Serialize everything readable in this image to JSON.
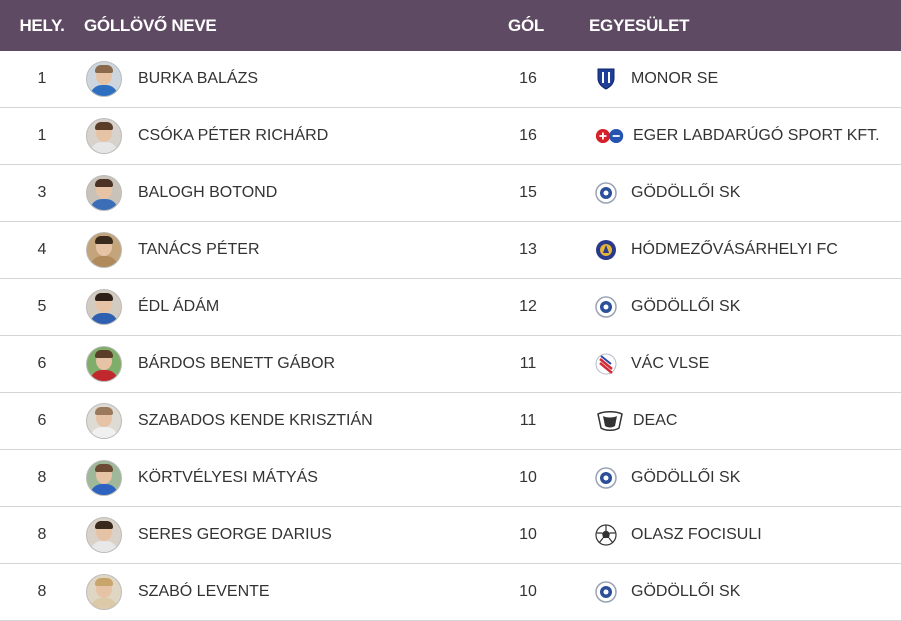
{
  "header": {
    "rank": "HELY.",
    "name": "GÓLLÖVŐ NEVE",
    "goals": "GÓL",
    "club": "EGYESÜLET"
  },
  "rows": [
    {
      "rank": "1",
      "name": "BURKA BALÁZS",
      "goals": "16",
      "club": "MONOR SE",
      "crest_icon": "monor-se-crest-icon",
      "shirt": "#2f6fc0",
      "hair": "#8a6a4a",
      "bg": "#cdd6de"
    },
    {
      "rank": "1",
      "name": "CSÓKA PÉTER RICHÁRD",
      "goals": "16",
      "club": "EGER LABDARÚGÓ SPORT KFT.",
      "crest_icon": "eger-crest-icon",
      "shirt": "#e6e6e6",
      "hair": "#5a3e2a",
      "bg": "#d8d2cc"
    },
    {
      "rank": "3",
      "name": "BALOGH BOTOND",
      "goals": "15",
      "club": "GÖDÖLLŐI SK",
      "crest_icon": "godolloi-sk-crest-icon",
      "shirt": "#3a6fb8",
      "hair": "#4a3324",
      "bg": "#c9c2b8"
    },
    {
      "rank": "4",
      "name": "TANÁCS PÉTER",
      "goals": "13",
      "club": "HÓDMEZŐVÁSÁRHELYI FC",
      "crest_icon": "hodmezovasarhelyi-fc-crest-icon",
      "shirt": "#b08a5a",
      "hair": "#3a2a1e",
      "bg": "#c4a47a"
    },
    {
      "rank": "5",
      "name": "ÉDL ÁDÁM",
      "goals": "12",
      "club": "GÖDÖLLŐI SK",
      "crest_icon": "godolloi-sk-crest-icon",
      "shirt": "#2f5fb0",
      "hair": "#2d2018",
      "bg": "#d3cbc0"
    },
    {
      "rank": "6",
      "name": "BÁRDOS BENETT GÁBOR",
      "goals": "11",
      "club": "VÁC VLSE",
      "crest_icon": "vac-vlse-crest-icon",
      "shirt": "#c0282d",
      "hair": "#5a3e2a",
      "bg": "#7fae6a"
    },
    {
      "rank": "6",
      "name": "SZABADOS KENDE KRISZTIÁN",
      "goals": "11",
      "club": "DEAC",
      "crest_icon": "deac-crest-icon",
      "shirt": "#f0f0f0",
      "hair": "#9a7a5a",
      "bg": "#dedad4"
    },
    {
      "rank": "8",
      "name": "KÖRTVÉLYESI MÁTYÁS",
      "goals": "10",
      "club": "GÖDÖLLŐI SK",
      "crest_icon": "godolloi-sk-crest-icon",
      "shirt": "#2d62c0",
      "hair": "#6b4b34",
      "bg": "#9fb89a"
    },
    {
      "rank": "8",
      "name": "SERES GEORGE DARIUS",
      "goals": "10",
      "club": "OLASZ FOCISULI",
      "crest_icon": "olasz-focisuli-crest-icon",
      "shirt": "#e8e8e8",
      "hair": "#3a2a1e",
      "bg": "#dad2c8"
    },
    {
      "rank": "8",
      "name": "SZABÓ LEVENTE",
      "goals": "10",
      "club": "GÖDÖLLŐI SK",
      "crest_icon": "godolloi-sk-crest-icon",
      "shirt": "#dcc9a8",
      "hair": "#c8a56a",
      "bg": "#e0d6c4"
    }
  ],
  "colors": {
    "header_bg": "#5e4a63",
    "header_text": "#ffffff",
    "row_border": "#d5d5d5"
  }
}
